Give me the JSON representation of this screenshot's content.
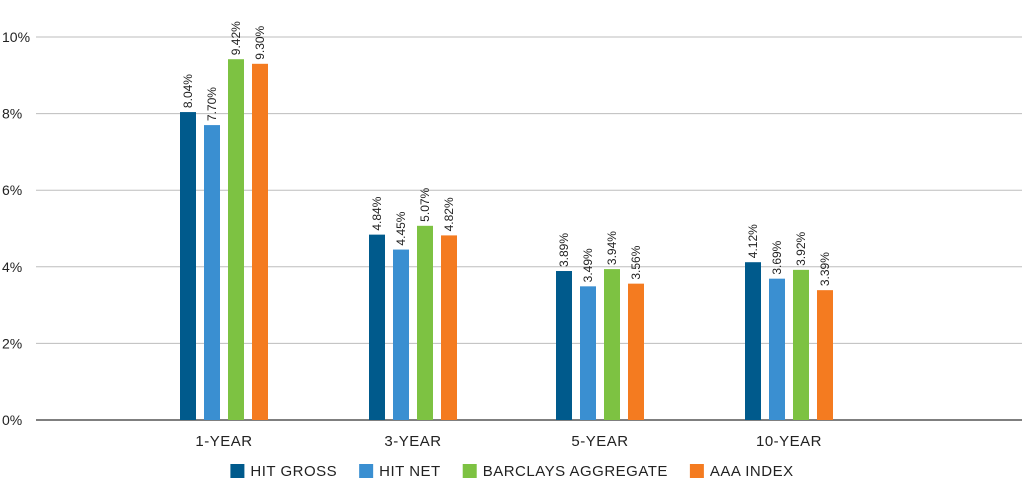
{
  "chart_data": {
    "type": "bar",
    "categories": [
      "1-YEAR",
      "3-YEAR",
      "5-YEAR",
      "10-YEAR"
    ],
    "series": [
      {
        "name": "HIT GROSS",
        "color": "#005a8c",
        "values": [
          8.04,
          4.84,
          3.89,
          4.12
        ],
        "labels": [
          "8.04%",
          "4.84%",
          "3.89%",
          "4.12%"
        ]
      },
      {
        "name": "HIT NET",
        "color": "#3a8fd1",
        "values": [
          7.7,
          4.45,
          3.49,
          3.69
        ],
        "labels": [
          "7.70%",
          "4.45%",
          "3.49%",
          "3.69%"
        ]
      },
      {
        "name": "BARCLAYS AGGREGATE",
        "color": "#7dc242",
        "values": [
          9.42,
          5.07,
          3.94,
          3.92
        ],
        "labels": [
          "9.42%",
          "5.07%",
          "3.94%",
          "3.92%"
        ]
      },
      {
        "name": "AAA INDEX",
        "color": "#f47b20",
        "values": [
          9.3,
          4.82,
          3.56,
          3.39
        ],
        "labels": [
          "9.30%",
          "4.82%",
          "3.56%",
          "3.39%"
        ]
      }
    ],
    "y_ticks": [
      0,
      2,
      4,
      6,
      8,
      10
    ],
    "y_tick_labels": [
      "0%",
      "2%",
      "4%",
      "6%",
      "8%",
      "10%"
    ],
    "ylim": [
      0,
      10
    ],
    "grid": true,
    "legend_position": "bottom-center",
    "title": "",
    "xlabel": "",
    "ylabel": ""
  }
}
